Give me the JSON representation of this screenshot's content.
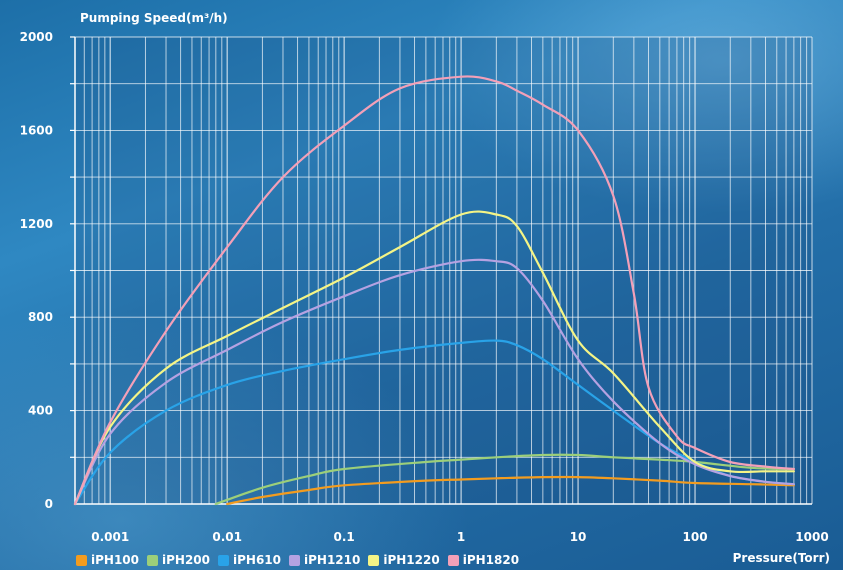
{
  "chart_data": {
    "type": "line",
    "title": "",
    "ylabel": "Pumping Speed(m³/h)",
    "xlabel": "Pressure(Torr)",
    "xscale": "log",
    "xlim": [
      0.0005,
      1000
    ],
    "ylim": [
      0,
      2000
    ],
    "x_ticks": [
      {
        "value": 0.001,
        "label": "0.001"
      },
      {
        "value": 0.01,
        "label": "0.01"
      },
      {
        "value": 0.1,
        "label": "0.1"
      },
      {
        "value": 1,
        "label": "1"
      },
      {
        "value": 10,
        "label": "10"
      },
      {
        "value": 100,
        "label": "100"
      },
      {
        "value": 1000,
        "label": "1000"
      }
    ],
    "y_ticks": [
      {
        "value": 0,
        "label": "0"
      },
      {
        "value": 400,
        "label": "400"
      },
      {
        "value": 800,
        "label": "800"
      },
      {
        "value": 1200,
        "label": "1200"
      },
      {
        "value": 1600,
        "label": "1600"
      },
      {
        "value": 2000,
        "label": "2000"
      }
    ],
    "grid": true,
    "legend_position": "bottom-left",
    "series": [
      {
        "name": "iPH100",
        "color": "#f39c1f",
        "points": [
          [
            0.01,
            0
          ],
          [
            0.02,
            30
          ],
          [
            0.05,
            60
          ],
          [
            0.1,
            80
          ],
          [
            0.5,
            100
          ],
          [
            1,
            105
          ],
          [
            2,
            110
          ],
          [
            5,
            115
          ],
          [
            10,
            115
          ],
          [
            20,
            110
          ],
          [
            50,
            100
          ],
          [
            100,
            90
          ],
          [
            300,
            85
          ],
          [
            700,
            80
          ]
        ]
      },
      {
        "name": "iPH200",
        "color": "#9ccf7a",
        "points": [
          [
            0.008,
            0
          ],
          [
            0.02,
            70
          ],
          [
            0.05,
            120
          ],
          [
            0.1,
            150
          ],
          [
            0.5,
            180
          ],
          [
            1,
            190
          ],
          [
            2,
            200
          ],
          [
            5,
            210
          ],
          [
            10,
            210
          ],
          [
            20,
            200
          ],
          [
            50,
            190
          ],
          [
            100,
            180
          ],
          [
            300,
            155
          ],
          [
            700,
            150
          ]
        ]
      },
      {
        "name": "iPH610",
        "color": "#29a3e8",
        "points": [
          [
            0.0005,
            0
          ],
          [
            0.001,
            220
          ],
          [
            0.003,
            400
          ],
          [
            0.01,
            510
          ],
          [
            0.03,
            570
          ],
          [
            0.1,
            620
          ],
          [
            0.3,
            660
          ],
          [
            1,
            690
          ],
          [
            2,
            700
          ],
          [
            3,
            680
          ],
          [
            5,
            620
          ],
          [
            10,
            510
          ],
          [
            20,
            400
          ],
          [
            50,
            260
          ],
          [
            100,
            180
          ],
          [
            200,
            120
          ],
          [
            400,
            95
          ],
          [
            700,
            85
          ]
        ]
      },
      {
        "name": "iPH1210",
        "color": "#b5a2e2",
        "points": [
          [
            0.0005,
            0
          ],
          [
            0.001,
            300
          ],
          [
            0.003,
            520
          ],
          [
            0.01,
            660
          ],
          [
            0.03,
            780
          ],
          [
            0.1,
            890
          ],
          [
            0.3,
            980
          ],
          [
            1,
            1040
          ],
          [
            2,
            1040
          ],
          [
            3,
            1010
          ],
          [
            5,
            870
          ],
          [
            10,
            620
          ],
          [
            20,
            440
          ],
          [
            50,
            260
          ],
          [
            100,
            170
          ],
          [
            200,
            120
          ],
          [
            400,
            95
          ],
          [
            700,
            85
          ]
        ]
      },
      {
        "name": "iPH1220",
        "color": "#f4f486",
        "points": [
          [
            0.0005,
            0
          ],
          [
            0.001,
            330
          ],
          [
            0.003,
            580
          ],
          [
            0.01,
            720
          ],
          [
            0.03,
            840
          ],
          [
            0.1,
            970
          ],
          [
            0.3,
            1100
          ],
          [
            1,
            1240
          ],
          [
            2,
            1240
          ],
          [
            3,
            1190
          ],
          [
            5,
            990
          ],
          [
            10,
            700
          ],
          [
            20,
            560
          ],
          [
            50,
            330
          ],
          [
            100,
            180
          ],
          [
            200,
            140
          ],
          [
            400,
            140
          ],
          [
            700,
            140
          ]
        ]
      },
      {
        "name": "iPH1820",
        "color": "#f3a0b8",
        "points": [
          [
            0.0005,
            0
          ],
          [
            0.001,
            350
          ],
          [
            0.003,
            740
          ],
          [
            0.01,
            1100
          ],
          [
            0.03,
            1400
          ],
          [
            0.1,
            1620
          ],
          [
            0.3,
            1780
          ],
          [
            1,
            1830
          ],
          [
            2,
            1810
          ],
          [
            3,
            1770
          ],
          [
            5,
            1710
          ],
          [
            10,
            1600
          ],
          [
            20,
            1320
          ],
          [
            30,
            900
          ],
          [
            40,
            500
          ],
          [
            70,
            290
          ],
          [
            100,
            240
          ],
          [
            200,
            180
          ],
          [
            400,
            160
          ],
          [
            700,
            150
          ]
        ]
      }
    ]
  }
}
